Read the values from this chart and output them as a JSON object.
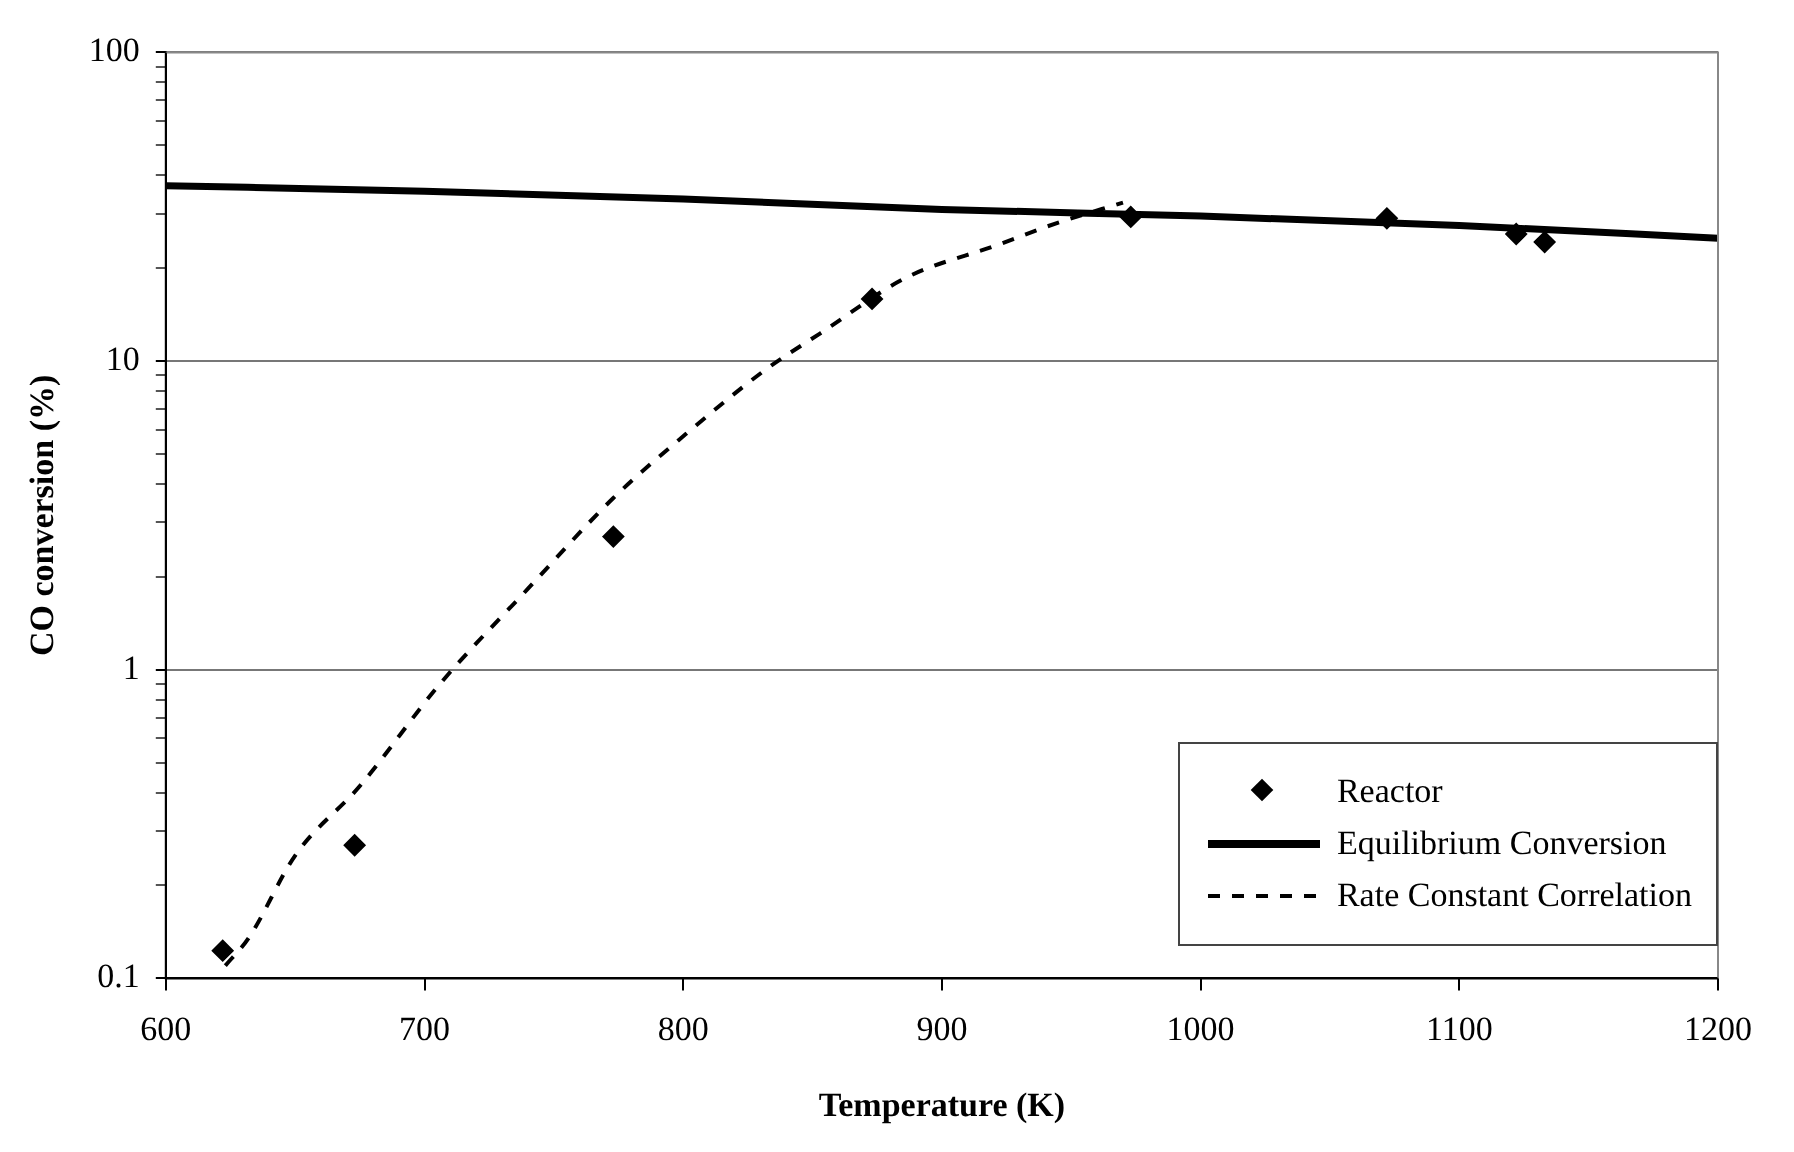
{
  "chart_data": {
    "type": "scatter",
    "xlabel": "Temperature (K)",
    "ylabel": "CO conversion (%)",
    "xlim": [
      600,
      1200
    ],
    "xticks": [
      600,
      700,
      800,
      900,
      1000,
      1100,
      1200
    ],
    "ylim": [
      0.1,
      100
    ],
    "yticks": [
      {
        "value": 0.1,
        "label": "0.1"
      },
      {
        "value": 0.2,
        "label": null
      },
      {
        "value": 0.3,
        "label": null
      },
      {
        "value": 0.4,
        "label": null
      },
      {
        "value": 0.5,
        "label": null
      },
      {
        "value": 0.6,
        "label": null
      },
      {
        "value": 0.7,
        "label": null
      },
      {
        "value": 0.8,
        "label": null
      },
      {
        "value": 0.9,
        "label": null
      },
      1,
      {
        "value": 2,
        "label": null
      },
      {
        "value": 3,
        "label": null
      },
      {
        "value": 4,
        "label": null
      },
      {
        "value": 5,
        "label": null
      },
      {
        "value": 6,
        "label": null
      },
      {
        "value": 7,
        "label": null
      },
      {
        "value": 8,
        "label": null
      },
      {
        "value": 9,
        "label": null
      },
      10,
      {
        "value": 20,
        "label": null
      },
      {
        "value": 30,
        "label": null
      },
      {
        "value": 40,
        "label": null
      },
      {
        "value": 50,
        "label": null
      },
      {
        "value": 60,
        "label": null
      },
      {
        "value": 70,
        "label": null
      },
      {
        "value": 80,
        "label": null
      },
      {
        "value": 90,
        "label": null
      },
      100
    ],
    "log": "y",
    "grid": "y",
    "legend": "bottom right",
    "series": [
      {
        "name": "Reactor",
        "type": "scatter",
        "marker": "diamond",
        "color": "#000000",
        "x": [
          622,
          673,
          773,
          873,
          973,
          1072,
          1122,
          1133
        ],
        "values": [
          0.123,
          0.27,
          2.7,
          15.9,
          29.3,
          29,
          25.8,
          24.3
        ]
      },
      {
        "name": "Equilibrium Conversion",
        "type": "line",
        "line_style": "solid",
        "marker": "none",
        "color": "#000000",
        "x": [
          600,
          700,
          800,
          900,
          1000,
          1100,
          1200
        ],
        "values": [
          37,
          35.5,
          33.5,
          31,
          29.5,
          27.5,
          25
        ]
      },
      {
        "name": "Rate Constant Correlation",
        "type": "line",
        "line_style": "dashed",
        "marker": "none",
        "color": "#000000",
        "x": [
          623,
          632,
          650,
          675,
          706,
          740,
          773,
          801,
          832,
          853,
          886,
          921,
          945,
          970
        ],
        "values": [
          0.11,
          0.135,
          0.25,
          0.42,
          0.9,
          1.83,
          3.6,
          5.8,
          9.4,
          12.3,
          18.6,
          23.7,
          28.1,
          32.6
        ]
      }
    ]
  }
}
